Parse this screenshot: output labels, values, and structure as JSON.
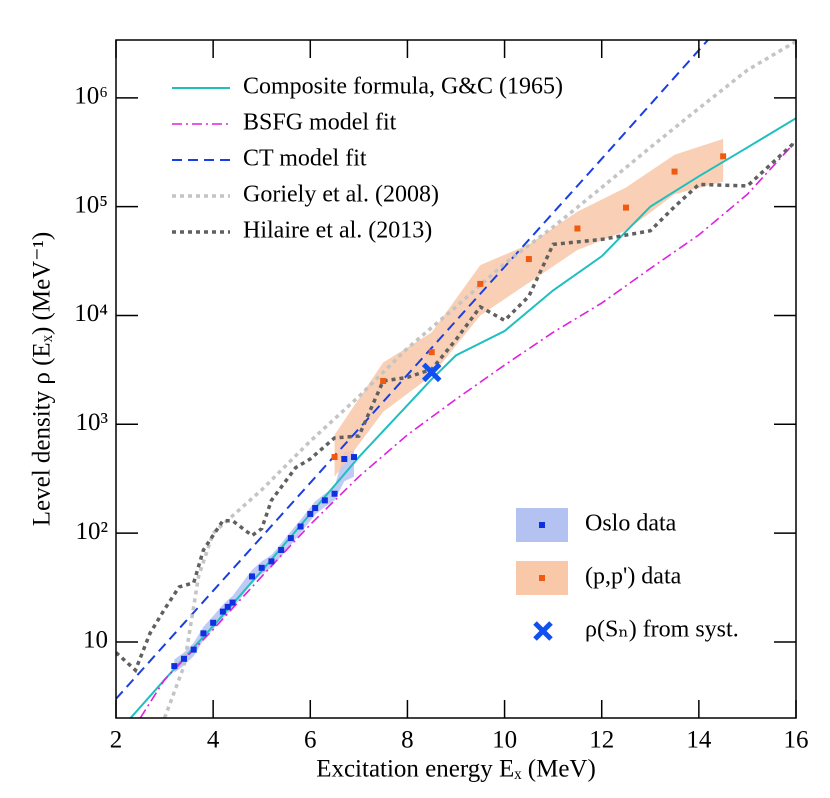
{
  "chart_data": {
    "type": "line",
    "x_label": "Excitation energy Eₓ (MeV)",
    "y_label": "Level density ρ (Eₓ) (MeV⁻¹)",
    "xlim": [
      2,
      16
    ],
    "xticks": [
      2,
      4,
      6,
      8,
      10,
      12,
      14,
      16
    ],
    "ylim": [
      2,
      3400000
    ],
    "log_y": true,
    "yticks": [
      10,
      {
        "value": 100,
        "label": "10²"
      },
      {
        "value": 1000,
        "label": "10³"
      },
      {
        "value": 10000,
        "label": "10⁴"
      },
      {
        "value": 100000,
        "label": "10⁵"
      },
      {
        "value": 1000000,
        "label": "10⁶"
      }
    ],
    "series": [
      {
        "name": "Composite formula, G&C (1965)",
        "color": "#1fbfbf",
        "style": "solid",
        "x": [
          2.3,
          3,
          4,
          5,
          6,
          7,
          8,
          8.5,
          9,
          10,
          11,
          12,
          13,
          14,
          15,
          16
        ],
        "values": [
          2,
          4.5,
          14,
          45,
          150,
          500,
          1500,
          2600,
          4300,
          7200,
          17000,
          35000,
          100000,
          190000,
          350000,
          650000
        ]
      },
      {
        "name": "BSFG model fit",
        "color": "#e020e0",
        "style": "dashdot",
        "x": [
          2.5,
          3,
          4,
          5,
          6,
          7,
          8,
          9,
          10,
          11,
          12,
          13,
          14,
          15,
          16
        ],
        "values": [
          2,
          4.5,
          13,
          40,
          120,
          330,
          800,
          1700,
          3500,
          7000,
          13000,
          27000,
          55000,
          130000,
          400000
        ]
      },
      {
        "name": "CT model fit",
        "color": "#1a3fe0",
        "style": "dashed",
        "x": [
          2,
          4,
          6,
          8,
          10,
          12,
          14.2
        ],
        "values": [
          3,
          29.5,
          290,
          2850,
          28000,
          275000,
          3450000
        ]
      },
      {
        "name": "Goriely et al. (2008)",
        "color": "#c4c4c4",
        "style": "dotted",
        "x": [
          3,
          3.4,
          3.7,
          4,
          5,
          6,
          7,
          8,
          9,
          10,
          11,
          12,
          13,
          14,
          15,
          16
        ],
        "values": [
          2,
          6,
          40,
          100,
          250,
          700,
          1800,
          5000,
          12000,
          30000,
          65000,
          150000,
          350000,
          800000,
          1800000,
          3300000
        ]
      },
      {
        "name": "Hilaire et al. (2013)",
        "color": "#606060",
        "style": "dotted",
        "x": [
          2,
          2.4,
          2.7,
          3,
          3.3,
          3.6,
          3.8,
          4.2,
          4.4,
          4.8,
          5,
          5.2,
          5.7,
          6,
          6.5,
          7,
          7.5,
          8,
          8.5,
          9,
          9.5,
          10,
          10.5,
          11,
          12,
          13,
          13.5,
          14,
          15,
          16
        ],
        "values": [
          8,
          5.5,
          12,
          20,
          32,
          35,
          70,
          130,
          130,
          95,
          110,
          200,
          400,
          480,
          750,
          780,
          2500,
          2700,
          3200,
          6000,
          12000,
          9000,
          15000,
          45000,
          50000,
          60000,
          100000,
          160000,
          155000,
          400000
        ]
      }
    ],
    "data_sets": [
      {
        "name": "Oslo data",
        "color": "#1030e0",
        "band_color": "#b4c2f2",
        "marker": "square",
        "x": [
          3.2,
          3.4,
          3.6,
          3.8,
          4,
          4.2,
          4.3,
          4.4,
          4.8,
          5,
          5.2,
          5.4,
          5.6,
          5.8,
          6,
          6.1,
          6.3,
          6.5,
          6.7,
          6.9
        ],
        "values": [
          6,
          7,
          8.5,
          12,
          15,
          19,
          21,
          23,
          40,
          48,
          55,
          70,
          90,
          115,
          150,
          170,
          200,
          230,
          480,
          500
        ],
        "lower": [
          5.2,
          6.1,
          7.4,
          10.4,
          13,
          16.5,
          18.3,
          20,
          35,
          42,
          48,
          61,
          78,
          100,
          130,
          148,
          174,
          200,
          300,
          330
        ],
        "upper": [
          6.9,
          8,
          9.8,
          13.8,
          17.3,
          21.9,
          24.2,
          26.5,
          46,
          55,
          63,
          80,
          104,
          132,
          172,
          196,
          230,
          265,
          560,
          580
        ]
      },
      {
        "name": "(p,p') data",
        "color": "#f05a10",
        "band_color": "#f8c8a8",
        "marker": "square",
        "x": [
          6.5,
          7.5,
          8.5,
          9.5,
          10.5,
          11.5,
          12.5,
          13.5,
          14.5
        ],
        "values": [
          500,
          2500,
          4600,
          19500,
          33000,
          63000,
          98000,
          210000,
          290000
        ],
        "lower": [
          330,
          1300,
          2800,
          10000,
          20000,
          40000,
          60000,
          130000,
          170000
        ],
        "upper": [
          800,
          3700,
          7000,
          29000,
          45000,
          90000,
          150000,
          300000,
          420000
        ]
      },
      {
        "name": "ρ(Sₙ) from syst.",
        "color": "#1050f0",
        "marker": "x",
        "x": [
          8.5
        ],
        "values": [
          3000
        ]
      }
    ]
  }
}
